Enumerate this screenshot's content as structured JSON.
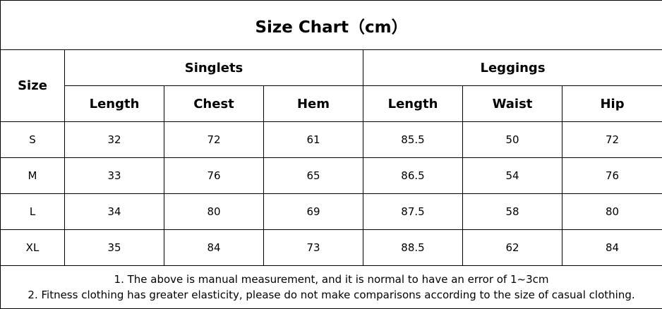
{
  "title": "Size Chart（cm）",
  "table": {
    "size_header": "Size",
    "groups": [
      {
        "label": "Singlets",
        "columns": [
          "Length",
          "Chest",
          "Hem"
        ]
      },
      {
        "label": "Leggings",
        "columns": [
          "Length",
          "Waist",
          "Hip"
        ]
      }
    ],
    "rows": [
      [
        "S",
        32,
        72,
        61,
        85.5,
        50,
        72
      ],
      [
        "M",
        33,
        76,
        65,
        86.5,
        54,
        76
      ],
      [
        "L",
        34,
        80,
        69,
        87.5,
        58,
        80
      ],
      [
        "XL",
        35,
        84,
        73,
        88.5,
        62,
        84
      ]
    ]
  },
  "notes": [
    "1. The above is manual measurement, and it is normal to have an error of 1~3cm",
    "2. Fitness clothing has greater elasticity, please do not make comparisons according to the size of casual clothing."
  ]
}
